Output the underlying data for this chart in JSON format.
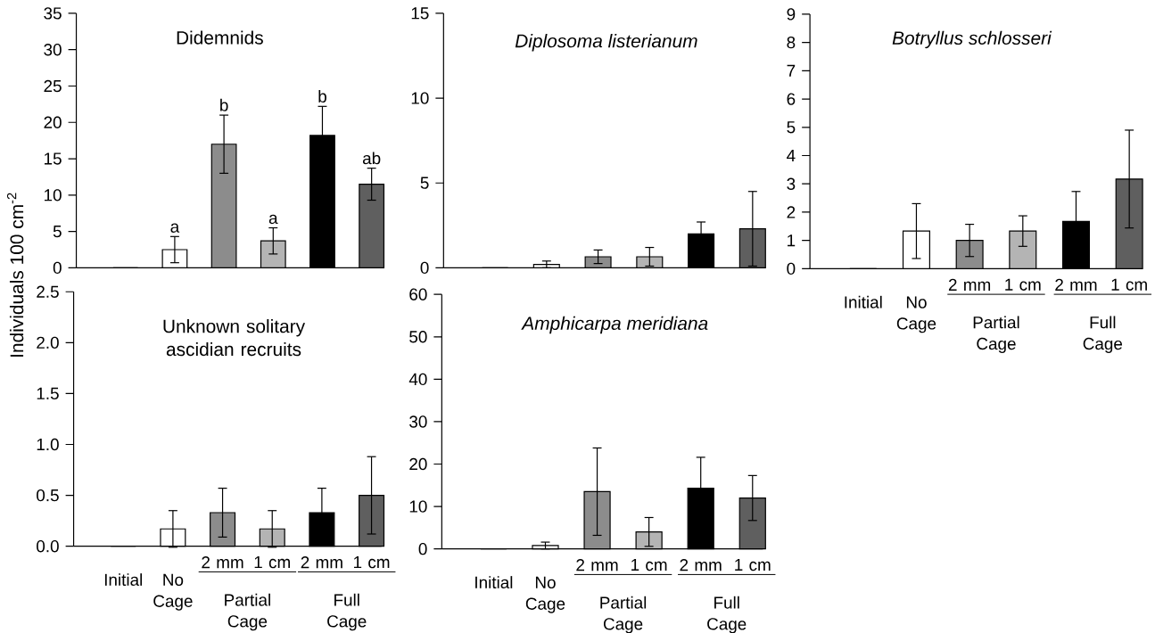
{
  "chart_data": [
    {
      "type": "bar",
      "title": "Didemnids",
      "ylabel": "Individuals 100 cm$^{-2}$",
      "categories": [
        null,
        null,
        null,
        null,
        null,
        null
      ],
      "values": [
        0,
        2.5,
        17,
        3.7,
        18.2,
        11.5
      ],
      "errors": [
        null,
        1.8,
        4,
        1.8,
        4,
        2.2
      ],
      "value_labels": [
        null,
        "a",
        "b",
        "a",
        "b",
        "ab"
      ],
      "colors": [
        "#ffffff",
        "#ffffff",
        "#8c8c8c",
        "#b4b4b4",
        "#000000",
        "#5f5f5f"
      ],
      "ylim": [
        0,
        35
      ],
      "yticks": [
        0,
        5,
        10,
        15,
        20,
        25,
        30,
        35
      ],
      "tick_labels": "y"
    },
    {
      "type": "bar",
      "title": "Diplosoma listerianum",
      "categories": [
        null,
        null,
        null,
        null,
        null,
        null
      ],
      "values": [
        0,
        0.2,
        0.65,
        0.65,
        2,
        2.3
      ],
      "errors": [
        null,
        0.2,
        0.4,
        0.55,
        0.7,
        2.2
      ],
      "colors": [
        "#ffffff",
        "#ffffff",
        "#8c8c8c",
        "#b4b4b4",
        "#000000",
        "#5f5f5f"
      ],
      "ylim": [
        0,
        15
      ],
      "yticks": [
        0,
        5,
        10,
        15
      ],
      "tick_labels": "y"
    },
    {
      "type": "bar",
      "title": "Botryllus schlosseri",
      "categories": [
        "Initial",
        "No Cage",
        "2 mm",
        "1 cm",
        "2 mm",
        "1 cm"
      ],
      "values": [
        0,
        1.33,
        1.0,
        1.33,
        1.67,
        3.17
      ],
      "errors": [
        null,
        0.97,
        0.57,
        0.54,
        1.06,
        1.73
      ],
      "colors": [
        "#ffffff",
        "#ffffff",
        "#8c8c8c",
        "#b4b4b4",
        "#000000",
        "#5f5f5f"
      ],
      "ylim": [
        0,
        9
      ],
      "yticks": [
        0,
        1,
        2,
        3,
        4,
        5,
        6,
        7,
        8,
        9
      ],
      "annotations": [
        "Partial Cage",
        "Full Cage"
      ]
    },
    {
      "type": "bar",
      "title": "Unknown solitary ascidian recruits",
      "categories": [
        "Initial",
        "No Cage",
        "2 mm",
        "1 cm",
        "2 mm",
        "1 cm"
      ],
      "values": [
        0,
        0.17,
        0.33,
        0.17,
        0.33,
        0.5
      ],
      "errors": [
        null,
        0.18,
        0.24,
        0.18,
        0.24,
        0.38
      ],
      "colors": [
        "#ffffff",
        "#ffffff",
        "#8c8c8c",
        "#b4b4b4",
        "#000000",
        "#5f5f5f"
      ],
      "ylim": [
        0,
        2.5
      ],
      "yticks": [
        {
          "value": 0,
          "label": "0.0"
        },
        {
          "value": 0.5,
          "label": "0.5"
        },
        {
          "value": 1,
          "label": "1.0"
        },
        {
          "value": 1.5,
          "label": "1.5"
        },
        {
          "value": 2,
          "label": "2.0"
        },
        {
          "value": 2.5,
          "label": "2.5"
        }
      ],
      "annotations": [
        "Partial Cage",
        "Full Cage"
      ]
    },
    {
      "type": "bar",
      "title": "Amphicarpa meridiana",
      "categories": [
        "Initial",
        "No Cage",
        "2 mm",
        "1 cm",
        "2 mm",
        "1 cm"
      ],
      "values": [
        0,
        0.8,
        13.5,
        4,
        14.3,
        12
      ],
      "errors": [
        null,
        0.8,
        10.3,
        3.4,
        7.3,
        5.3
      ],
      "colors": [
        "#ffffff",
        "#ffffff",
        "#8c8c8c",
        "#b4b4b4",
        "#000000",
        "#5f5f5f"
      ],
      "ylim": [
        0,
        60
      ],
      "yticks": [
        0,
        10,
        20,
        30,
        40,
        50,
        60
      ],
      "annotations": [
        "Partial Cage",
        "Full Cage"
      ]
    }
  ]
}
